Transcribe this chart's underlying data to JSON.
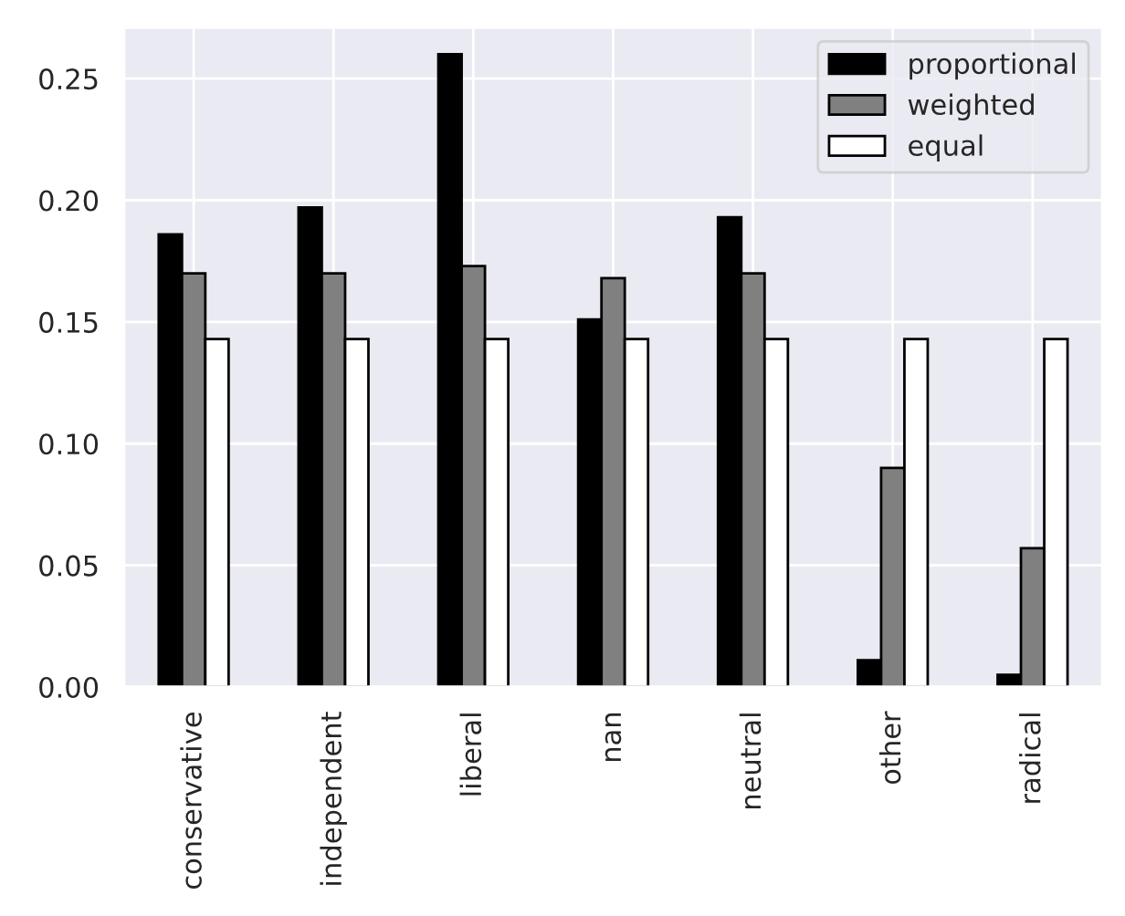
{
  "chart_data": {
    "type": "bar",
    "categories": [
      "conservative",
      "independent",
      "liberal",
      "nan",
      "neutral",
      "other",
      "radical"
    ],
    "series": [
      {
        "name": "proportional",
        "color": "#000000",
        "values": [
          0.186,
          0.197,
          0.26,
          0.151,
          0.193,
          0.011,
          0.005
        ]
      },
      {
        "name": "weighted",
        "color": "#808080",
        "values": [
          0.17,
          0.17,
          0.173,
          0.168,
          0.17,
          0.09,
          0.057
        ]
      },
      {
        "name": "equal",
        "color": "#ffffff",
        "values": [
          0.143,
          0.143,
          0.143,
          0.143,
          0.143,
          0.143,
          0.143
        ]
      }
    ],
    "ylim": [
      0,
      0.271
    ],
    "yticks": [
      {
        "value": 0,
        "label": "0.00"
      },
      {
        "value": 0.05,
        "label": "0.05"
      },
      {
        "value": 0.1,
        "label": "0.10"
      },
      {
        "value": 0.15,
        "label": "0.15"
      },
      {
        "value": 0.2,
        "label": "0.20"
      },
      {
        "value": 0.25,
        "label": "0.25"
      }
    ],
    "grid": true,
    "legend": "top right"
  }
}
